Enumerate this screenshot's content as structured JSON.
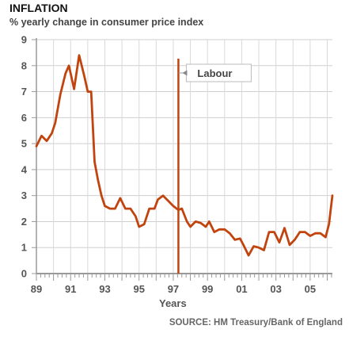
{
  "chart_data": {
    "type": "line",
    "title": "INFLATION",
    "subtitle": "% yearly change in consumer price index",
    "xlabel": "Years",
    "ylabel": "",
    "source": "SOURCE: HM Treasury/Bank of England",
    "ylim": [
      0,
      9
    ],
    "xlim": [
      1989,
      2006.3
    ],
    "yticks": [
      "0",
      "1",
      "2",
      "3",
      "4",
      "5",
      "6",
      "7",
      "8",
      "9"
    ],
    "xticks": [
      "89",
      "91",
      "93",
      "95",
      "97",
      "99",
      "01",
      "03",
      "05"
    ],
    "grid": true,
    "line_color": "#c1440e",
    "annotation": {
      "label": "Labour",
      "x": 1997.3
    },
    "series": [
      {
        "name": "",
        "x": [
          1989.0,
          1989.3,
          1989.6,
          1989.9,
          1990.1,
          1990.4,
          1990.7,
          1990.9,
          1991.2,
          1991.5,
          1991.8,
          1992.0,
          1992.2,
          1992.4,
          1992.6,
          1992.8,
          1993.0,
          1993.3,
          1993.6,
          1993.9,
          1994.2,
          1994.5,
          1994.8,
          1995.0,
          1995.3,
          1995.6,
          1995.9,
          1996.1,
          1996.4,
          1996.7,
          1997.0,
          1997.3,
          1997.5,
          1997.8,
          1998.0,
          1998.3,
          1998.6,
          1998.9,
          1999.1,
          1999.4,
          1999.7,
          2000.0,
          2000.3,
          2000.6,
          2000.9,
          2001.1,
          2001.4,
          2001.7,
          2002.0,
          2002.3,
          2002.6,
          2002.9,
          2003.2,
          2003.5,
          2003.8,
          2004.1,
          2004.4,
          2004.7,
          2005.0,
          2005.3,
          2005.6,
          2005.9,
          2006.1,
          2006.3
        ],
        "values": [
          4.9,
          5.3,
          5.1,
          5.4,
          5.8,
          6.9,
          7.7,
          8.0,
          7.1,
          8.4,
          7.6,
          7.0,
          7.0,
          4.3,
          3.6,
          3.0,
          2.6,
          2.5,
          2.5,
          2.9,
          2.5,
          2.5,
          2.2,
          1.8,
          1.9,
          2.5,
          2.5,
          2.85,
          3.0,
          2.8,
          2.6,
          2.45,
          2.5,
          2.0,
          1.8,
          2.0,
          1.95,
          1.8,
          2.0,
          1.6,
          1.7,
          1.7,
          1.55,
          1.3,
          1.35,
          1.1,
          0.7,
          1.05,
          1.0,
          0.9,
          1.6,
          1.6,
          1.2,
          1.75,
          1.1,
          1.3,
          1.6,
          1.6,
          1.45,
          1.55,
          1.55,
          1.4,
          1.9,
          3.0
        ]
      }
    ]
  }
}
